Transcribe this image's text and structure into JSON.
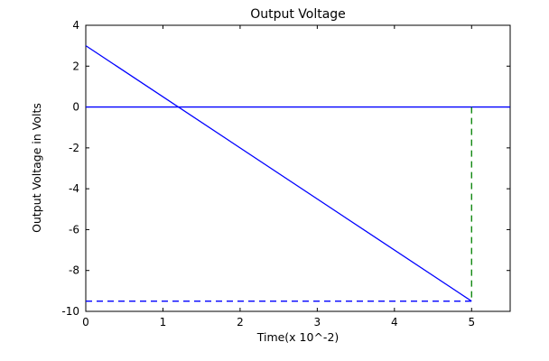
{
  "figure": {
    "background": "#ffffff",
    "frame_color": "#000000"
  },
  "chart_data": {
    "type": "line",
    "title": "Output Voltage",
    "xlabel": "Time(x 10^-2)",
    "ylabel": "Output Voltage in Volts",
    "xlim": [
      0,
      5.5
    ],
    "ylim": [
      -10,
      4
    ],
    "xticks": [
      0,
      1,
      2,
      3,
      4,
      5
    ],
    "yticks": [
      4,
      2,
      0,
      -2,
      -4,
      -6,
      -8,
      -10
    ],
    "grid": false,
    "legend_position": "none",
    "series": [
      {
        "name": "output-voltage-ramp",
        "color": "#0000ff",
        "style": "solid",
        "x": [
          0,
          5
        ],
        "y": [
          3,
          -9.5
        ]
      },
      {
        "name": "zero-reference-line",
        "color": "#0000ff",
        "style": "solid",
        "x": [
          0,
          5.5
        ],
        "y": [
          0,
          0
        ]
      },
      {
        "name": "final-value-dashed-line",
        "color": "#0000ff",
        "style": "dashed",
        "x": [
          0,
          5
        ],
        "y": [
          -9.5,
          -9.5
        ]
      },
      {
        "name": "time-marker-dashed-line",
        "color": "#008000",
        "style": "dashed",
        "x": [
          5,
          5
        ],
        "y": [
          0,
          -9.5
        ]
      }
    ]
  }
}
